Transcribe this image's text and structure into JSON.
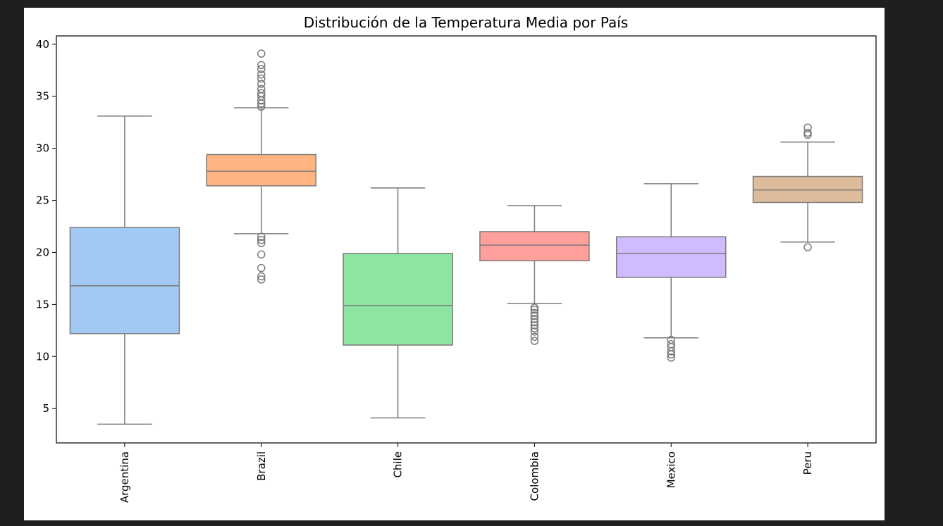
{
  "chart_data": {
    "type": "box",
    "title": "Distribución de la Temperatura Media por País",
    "xlabel": "",
    "ylabel": "",
    "ylim": [
      1.7,
      40.8
    ],
    "yticks": [
      5,
      10,
      15,
      20,
      25,
      30,
      35,
      40
    ],
    "categories": [
      "Argentina",
      "Brazil",
      "Chile",
      "Colombia",
      "Mexico",
      "Peru"
    ],
    "series": [
      {
        "category": "Argentina",
        "color": "#a1c9f4",
        "whisker_low": 3.5,
        "q1": 12.2,
        "median": 16.8,
        "q3": 22.4,
        "whisker_high": 33.1,
        "outliers": []
      },
      {
        "category": "Brazil",
        "color": "#ffb482",
        "whisker_low": 21.8,
        "q1": 26.4,
        "median": 27.8,
        "q3": 29.4,
        "whisker_high": 33.9,
        "outliers": [
          17.4,
          17.7,
          18.5,
          19.8,
          20.9,
          21.2,
          21.5,
          34.0,
          34.3,
          34.6,
          35.0,
          35.3,
          35.7,
          36.2,
          36.7,
          37.1,
          37.6,
          38.0,
          39.1
        ]
      },
      {
        "category": "Chile",
        "color": "#8de5a1",
        "whisker_low": 4.1,
        "q1": 11.1,
        "median": 14.9,
        "q3": 19.9,
        "whisker_high": 26.2,
        "outliers": []
      },
      {
        "category": "Colombia",
        "color": "#ff9f9b",
        "whisker_low": 15.1,
        "q1": 19.2,
        "median": 20.7,
        "q3": 22.0,
        "whisker_high": 24.5,
        "outliers": [
          11.5,
          11.9,
          12.4,
          12.7,
          13.0,
          13.3,
          13.6,
          13.9,
          14.2,
          14.5,
          14.7
        ]
      },
      {
        "category": "Mexico",
        "color": "#d0bbff",
        "whisker_low": 11.8,
        "q1": 17.6,
        "median": 19.9,
        "q3": 21.5,
        "whisker_high": 26.6,
        "outliers": [
          9.9,
          10.2,
          10.5,
          10.9,
          11.2,
          11.6
        ]
      },
      {
        "category": "Peru",
        "color": "#debb9b",
        "whisker_low": 21.0,
        "q1": 24.8,
        "median": 26.0,
        "q3": 27.3,
        "whisker_high": 30.6,
        "outliers": [
          20.5,
          31.3,
          31.5,
          32.0
        ]
      }
    ]
  }
}
